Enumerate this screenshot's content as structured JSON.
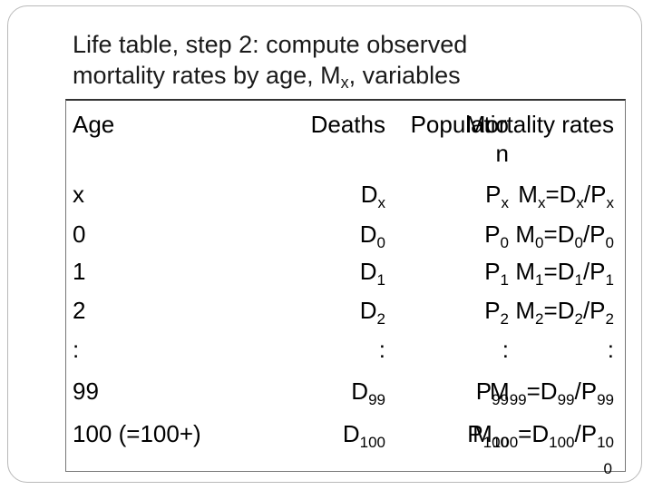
{
  "title": {
    "line1": "Life table, step 2: compute observed",
    "line2_pre": "mortality rates by age, M",
    "line2_sub": "x",
    "line2_post": ", variables"
  },
  "table": {
    "headers": {
      "age": "Age",
      "deaths": "Deaths",
      "population_l1": "Populatio",
      "population_l2": "n",
      "mortality": "Mortality rates"
    },
    "rows": [
      {
        "age": "x",
        "deaths": [
          "D",
          "x"
        ],
        "pop": [
          "P",
          "x"
        ],
        "rate": [
          [
            "M",
            "x"
          ],
          [
            "=D",
            "x"
          ],
          [
            "/P",
            "x"
          ]
        ]
      },
      {
        "age": "0",
        "deaths": [
          "D",
          "0"
        ],
        "pop": [
          "P",
          "0"
        ],
        "rate": [
          [
            "M",
            "0"
          ],
          [
            "=D",
            "0"
          ],
          [
            "/P",
            "0"
          ]
        ]
      },
      {
        "age": "1",
        "deaths": [
          "D",
          "1"
        ],
        "pop": [
          "P",
          "1"
        ],
        "rate": [
          [
            "M",
            "1"
          ],
          [
            "=D",
            "1"
          ],
          [
            "/P",
            "1"
          ]
        ]
      },
      {
        "age": "2",
        "deaths": [
          "D",
          "2"
        ],
        "pop": [
          "P",
          "2"
        ],
        "rate": [
          [
            "M",
            "2"
          ],
          [
            "=D",
            "2"
          ],
          [
            "/P",
            "2"
          ]
        ]
      },
      {
        "age": ":",
        "deaths": [
          ":",
          ""
        ],
        "pop": [
          ":",
          ""
        ],
        "rate": [
          [
            ":",
            ""
          ]
        ]
      },
      {
        "age": "99",
        "deaths": [
          "D",
          "99"
        ],
        "pop": [
          "P",
          "99"
        ],
        "rate": [
          [
            "M",
            "99"
          ],
          [
            "=D",
            "99"
          ],
          [
            "/P",
            "99"
          ]
        ]
      },
      {
        "age": "100 (=100+)",
        "deaths": [
          "D",
          "100"
        ],
        "pop": [
          "P",
          "100"
        ],
        "rate": [
          [
            "M",
            "100"
          ],
          [
            "=D",
            "100"
          ],
          [
            "/P",
            "10"
          ]
        ]
      }
    ],
    "wrap_tail": "0"
  }
}
